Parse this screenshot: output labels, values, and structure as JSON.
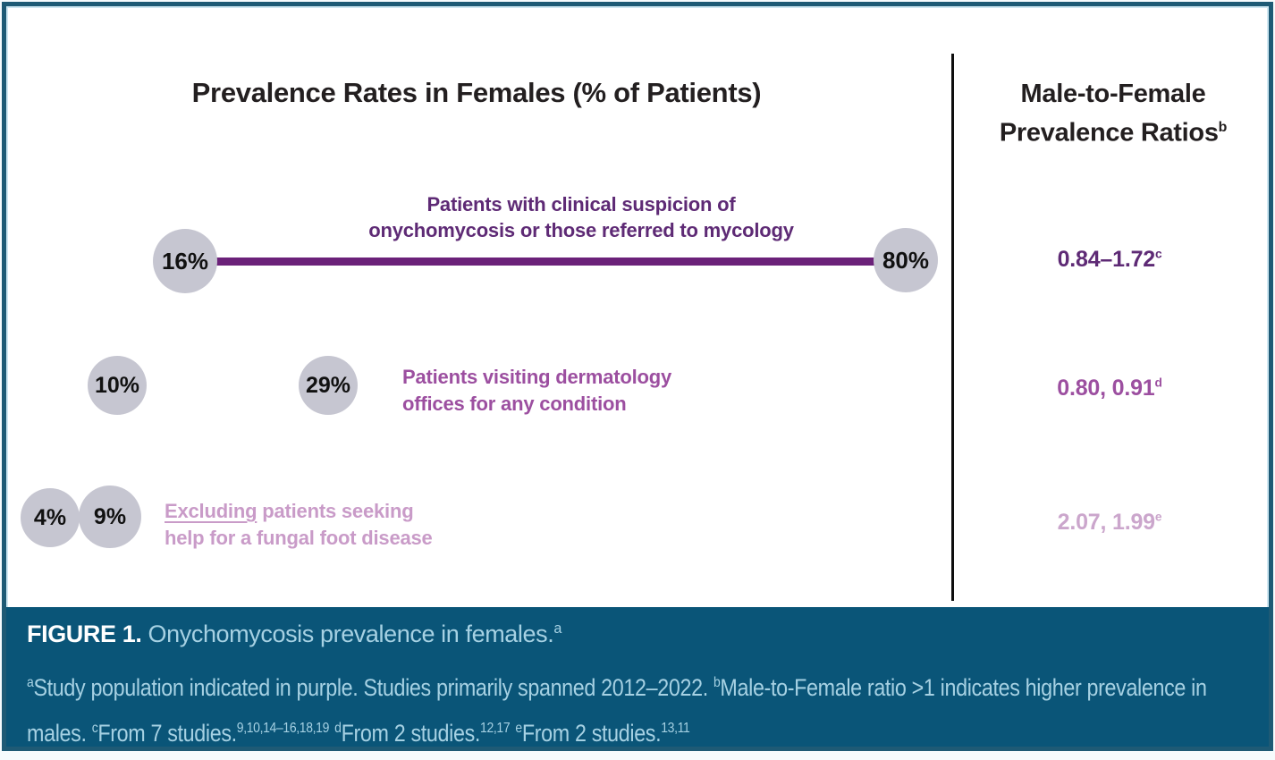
{
  "figure": {
    "left_header": "Prevalence Rates in Females (% of Patients)",
    "right_header": {
      "line1": "Male-to-Female",
      "line2": "Prevalence Ratios",
      "sup": "b"
    }
  },
  "rows": [
    {
      "label_lines": [
        "Patients with clinical suspicion of",
        "onychomycosis or those referred to mycology"
      ],
      "values": [
        "16%",
        "80%"
      ],
      "ratio": {
        "value": "0.84–1.72",
        "sup": "c"
      },
      "label_color": "#5e2a75",
      "line_color": "#6b2179"
    },
    {
      "label_lines": [
        "Patients visiting dermatology",
        "offices for any condition"
      ],
      "values": [
        "10%",
        "29%"
      ],
      "ratio": {
        "value": "0.80, 0.91",
        "sup": "d"
      },
      "label_color": "#9c4fa0"
    },
    {
      "label_underline": "Excluding",
      "label_line1_rest": " patients seeking",
      "label_line2": "help for a fungal foot disease",
      "values": [
        "4%",
        "9%"
      ],
      "ratio": {
        "value": "2.07, 1.99",
        "sup": "e"
      },
      "label_color": "#c99bc8"
    }
  ],
  "caption": {
    "figure_label": "FIGURE 1.",
    "title": " Onychomycosis prevalence in females.",
    "title_sup": "a",
    "footnote_segments": [
      {
        "sup": "a"
      },
      {
        "t": "Study population indicated in purple. Studies primarily spanned 2012–2022. "
      },
      {
        "sup": "b"
      },
      {
        "t": "Male-to-Female ratio >1 indicates higher prevalence in males. "
      },
      {
        "sup": "c"
      },
      {
        "t": "From 7 studies."
      },
      {
        "sup": "9,10,14–16,18,19"
      },
      {
        "t": " "
      },
      {
        "sup": "d"
      },
      {
        "t": "From 2 studies."
      },
      {
        "sup": "12,17"
      },
      {
        "t": " "
      },
      {
        "sup": "e"
      },
      {
        "t": "From 2 studies."
      },
      {
        "sup": "13,11"
      }
    ]
  },
  "colors": {
    "frame_border": "#1e5a75",
    "frame_inner_line": "#cfe7f2",
    "caption_background": "#0a5578",
    "caption_text": "#a6d1e3",
    "caption_label": "#ffffff",
    "bubble_fill": "#c6c6d1",
    "purple_dark": "#5e2a75",
    "purple_medium": "#9c4fa0",
    "purple_light": "#c99bc8",
    "range_line": "#6b2179",
    "divider": "#0d0d0d"
  },
  "chart_data": {
    "type": "scatter",
    "title": "Prevalence Rates in Females (% of Patients)",
    "right_column_label": "Male-to-Female Prevalence Ratios",
    "unit": "% of patients",
    "groups": [
      {
        "population": "Patients with clinical suspicion of onychomycosis or those referred to mycology",
        "prevalence_pct": [
          16,
          80
        ],
        "display": "range",
        "male_to_female_ratio": "0.84–1.72",
        "ratio_source": "From 7 studies",
        "ratio_refs": "9,10,14–16,18,19"
      },
      {
        "population": "Patients visiting dermatology offices for any condition",
        "prevalence_pct": [
          10,
          29
        ],
        "display": "points",
        "male_to_female_ratio": "0.80, 0.91",
        "ratio_source": "From 2 studies",
        "ratio_refs": "12,17"
      },
      {
        "population": "Excluding patients seeking help for a fungal foot disease",
        "prevalence_pct": [
          4,
          9
        ],
        "display": "points",
        "male_to_female_ratio": "2.07, 1.99",
        "ratio_source": "From 2 studies",
        "ratio_refs": "13,11"
      }
    ],
    "notes": "Study population indicated in purple. Studies primarily spanned 2012–2022. Male-to-Female ratio >1 indicates higher prevalence in males."
  }
}
